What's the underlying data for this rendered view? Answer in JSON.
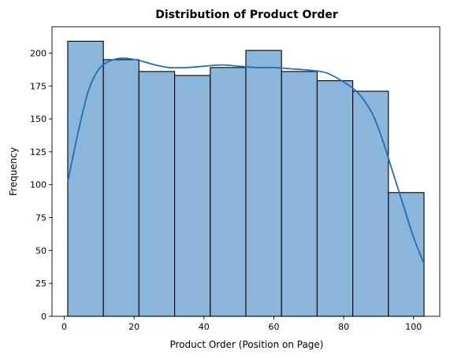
{
  "chart_data": {
    "type": "bar",
    "title": "Distribution of Product Order",
    "xlabel": "Product Order (Position on Page)",
    "ylabel": "Frequency",
    "bins": [
      {
        "start": 1.0,
        "end": 11.2,
        "value": 209
      },
      {
        "start": 11.2,
        "end": 21.4,
        "value": 195
      },
      {
        "start": 21.4,
        "end": 31.6,
        "value": 186
      },
      {
        "start": 31.6,
        "end": 41.8,
        "value": 183
      },
      {
        "start": 41.8,
        "end": 52.0,
        "value": 189
      },
      {
        "start": 52.0,
        "end": 62.2,
        "value": 202
      },
      {
        "start": 62.2,
        "end": 72.4,
        "value": 186
      },
      {
        "start": 72.4,
        "end": 82.6,
        "value": 179
      },
      {
        "start": 82.6,
        "end": 92.8,
        "value": 171
      },
      {
        "start": 92.8,
        "end": 103.0,
        "value": 94
      }
    ],
    "kde": {
      "x": [
        1,
        4,
        7,
        10,
        13,
        16,
        18,
        22,
        26,
        30,
        35,
        40,
        45,
        50,
        55,
        60,
        65,
        70,
        75,
        80,
        84,
        88,
        91,
        94,
        97,
        100,
        103
      ],
      "y": [
        102,
        140,
        172,
        188,
        194,
        196,
        196,
        194,
        191,
        189,
        189,
        190,
        191,
        190,
        189,
        189,
        188,
        187,
        185,
        178,
        170,
        155,
        135,
        110,
        85,
        60,
        40
      ]
    },
    "xlim": [
      -3.5,
      107.5
    ],
    "ylim": [
      0,
      220
    ],
    "xticks": [
      0,
      20,
      40,
      60,
      80,
      100
    ],
    "yticks": [
      0,
      25,
      50,
      75,
      100,
      125,
      150,
      175,
      200
    ],
    "grid": false,
    "colors": {
      "bar_fill": "#8bb5da",
      "bar_edge": "#000000",
      "kde_line": "#1f6fb4",
      "axes": "#000000"
    }
  }
}
